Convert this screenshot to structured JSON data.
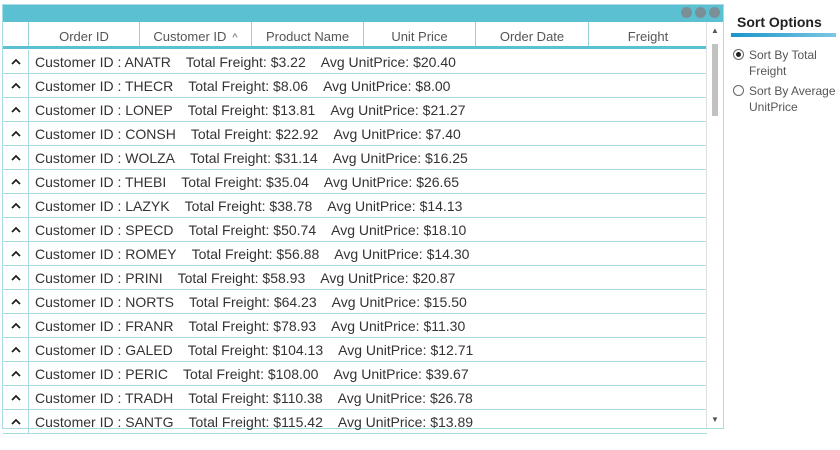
{
  "grid": {
    "columns": [
      {
        "label": "Order ID",
        "sorted": false
      },
      {
        "label": "Customer ID",
        "sorted": true
      },
      {
        "label": "Product Name",
        "sorted": false
      },
      {
        "label": "Unit Price",
        "sorted": false
      },
      {
        "label": "Order Date",
        "sorted": false
      },
      {
        "label": "Freight",
        "sorted": false
      }
    ],
    "sort_indicator": "^",
    "expander_glyph": "^",
    "groups": [
      {
        "customer": "Customer ID : ANATR",
        "freight": "Total Freight: $3.22",
        "avg": "Avg UnitPrice: $20.40"
      },
      {
        "customer": "Customer ID : THECR",
        "freight": "Total Freight: $8.06",
        "avg": "Avg UnitPrice: $8.00"
      },
      {
        "customer": "Customer ID : LONEP",
        "freight": "Total Freight: $13.81",
        "avg": "Avg UnitPrice: $21.27"
      },
      {
        "customer": "Customer ID : CONSH",
        "freight": "Total Freight: $22.92",
        "avg": "Avg UnitPrice: $7.40"
      },
      {
        "customer": "Customer ID : WOLZA",
        "freight": "Total Freight: $31.14",
        "avg": "Avg UnitPrice: $16.25"
      },
      {
        "customer": "Customer ID : THEBI",
        "freight": "Total Freight: $35.04",
        "avg": "Avg UnitPrice: $26.65"
      },
      {
        "customer": "Customer ID : LAZYK",
        "freight": "Total Freight: $38.78",
        "avg": "Avg UnitPrice: $14.13"
      },
      {
        "customer": "Customer ID : SPECD",
        "freight": "Total Freight: $50.74",
        "avg": "Avg UnitPrice: $18.10"
      },
      {
        "customer": "Customer ID : ROMEY",
        "freight": "Total Freight: $56.88",
        "avg": "Avg UnitPrice: $14.30"
      },
      {
        "customer": "Customer ID : PRINI",
        "freight": "Total Freight: $58.93",
        "avg": "Avg UnitPrice: $20.87"
      },
      {
        "customer": "Customer ID : NORTS",
        "freight": "Total Freight: $64.23",
        "avg": "Avg UnitPrice: $15.50"
      },
      {
        "customer": "Customer ID : FRANR",
        "freight": "Total Freight: $78.93",
        "avg": "Avg UnitPrice: $11.30"
      },
      {
        "customer": "Customer ID : GALED",
        "freight": "Total Freight: $104.13",
        "avg": "Avg UnitPrice: $12.71"
      },
      {
        "customer": "Customer ID : PERIC",
        "freight": "Total Freight: $108.00",
        "avg": "Avg UnitPrice: $39.67"
      },
      {
        "customer": "Customer ID : TRADH",
        "freight": "Total Freight: $110.38",
        "avg": "Avg UnitPrice: $26.78"
      },
      {
        "customer": "Customer ID : SANTG",
        "freight": "Total Freight: $115.42",
        "avg": "Avg UnitPrice: $13.89"
      }
    ]
  },
  "sort_panel": {
    "title": "Sort Options",
    "options": [
      {
        "label": "Sort By Total Freight",
        "selected": true
      },
      {
        "label": "Sort By Average UnitPrice",
        "selected": false
      }
    ]
  },
  "colors": {
    "accent": "#5bc1d2",
    "border": "#a8dbe4",
    "panel_underline": "#1b95c9"
  },
  "icons": {
    "window_dots": "ellipsis-dots-icon",
    "expander": "chevron-up-icon",
    "scroll_up": "scroll-up-arrow-icon",
    "scroll_down": "scroll-down-arrow-icon"
  }
}
